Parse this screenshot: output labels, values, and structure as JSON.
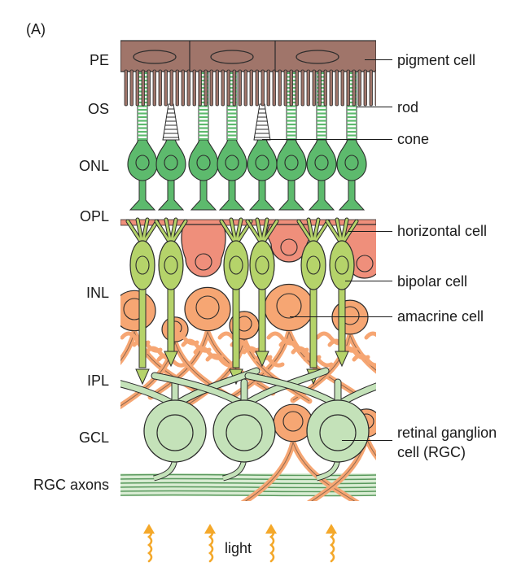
{
  "panel_label": "(A)",
  "layers": [
    {
      "key": "pe",
      "text": "PE"
    },
    {
      "key": "os",
      "text": "OS"
    },
    {
      "key": "onl",
      "text": "ONL"
    },
    {
      "key": "opl",
      "text": "OPL"
    },
    {
      "key": "inl",
      "text": "INL"
    },
    {
      "key": "ipl",
      "text": "IPL"
    },
    {
      "key": "gcl",
      "text": "GCL"
    },
    {
      "key": "axons",
      "text": "RGC axons"
    }
  ],
  "cell_labels": [
    {
      "key": "pigment",
      "text": "pigment cell"
    },
    {
      "key": "rod",
      "text": "rod"
    },
    {
      "key": "cone",
      "text": "cone"
    },
    {
      "key": "horizontal",
      "text": "horizontal cell"
    },
    {
      "key": "bipolar",
      "text": "bipolar cell"
    },
    {
      "key": "amacrine",
      "text": "amacrine cell"
    },
    {
      "key": "rgc1",
      "text": "retinal ganglion"
    },
    {
      "key": "rgc2",
      "text": "cell (RGC)"
    }
  ],
  "light_label": "light",
  "colors": {
    "pigment": "#a0756a",
    "photoreceptor": "#5dba6d",
    "horizontal": "#ef8f7b",
    "bipolar": "#b5d36a",
    "amacrine": "#f6a673",
    "ganglion": "#c4e2b9",
    "axon": "#5a9a5e",
    "light_arrow": "#f4a82a",
    "outline": "#2b2b2b"
  }
}
